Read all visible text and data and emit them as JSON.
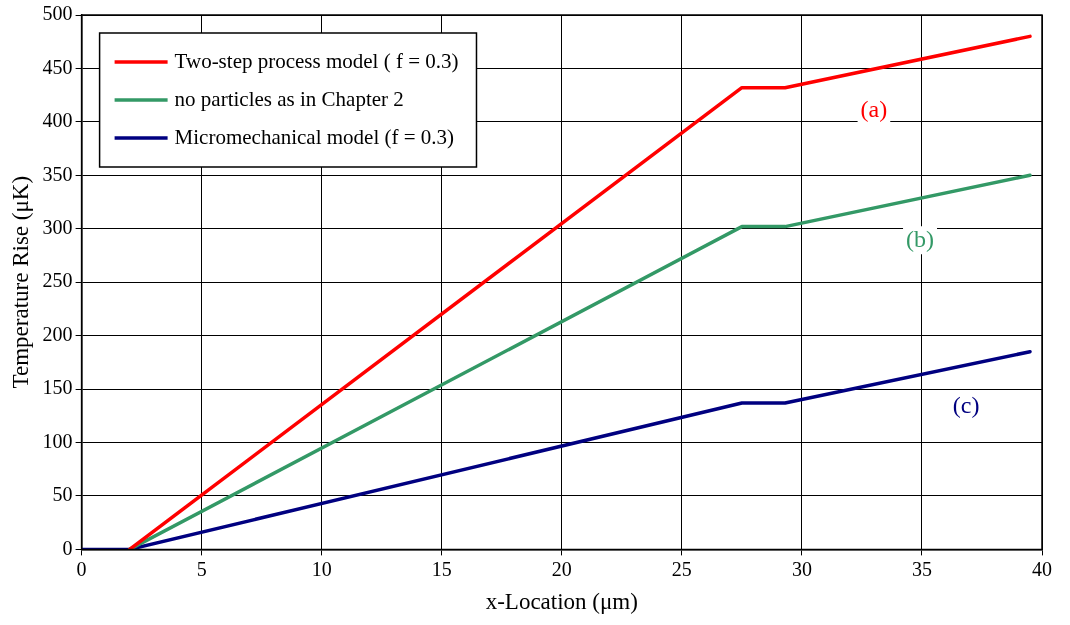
{
  "chart_data": {
    "type": "line",
    "xlabel": "x-Location (μm)",
    "ylabel": "Temperature Rise (μK)",
    "xlim": [
      0,
      40
    ],
    "xticks": [
      0,
      5,
      10,
      15,
      20,
      25,
      30,
      35,
      40
    ],
    "ylim": [
      0,
      500
    ],
    "yticks": [
      0,
      50,
      100,
      150,
      200,
      250,
      300,
      350,
      400,
      450,
      500
    ],
    "grid": true,
    "legend": "top left",
    "marker": "none",
    "line_style": "solid",
    "series": [
      {
        "name": "Two-step process model ( f = 0.3)",
        "color": "#ff0000",
        "x": [
          2,
          27.5,
          29.3,
          39.5
        ],
        "values": [
          0,
          432,
          432,
          480
        ]
      },
      {
        "name": "no particles as in Chapter 2",
        "color": "#339966",
        "x": [
          2,
          27.5,
          29.3,
          39.5
        ],
        "values": [
          0,
          302,
          302,
          350
        ]
      },
      {
        "name": "Micromechanical model (f = 0.3)",
        "color": "#000080",
        "x": [
          0,
          2,
          27.5,
          29.3,
          39.5
        ],
        "values": [
          0,
          0,
          137,
          137,
          185
        ]
      }
    ],
    "annotations": [
      "(a)",
      "(b)",
      "(c)"
    ]
  }
}
